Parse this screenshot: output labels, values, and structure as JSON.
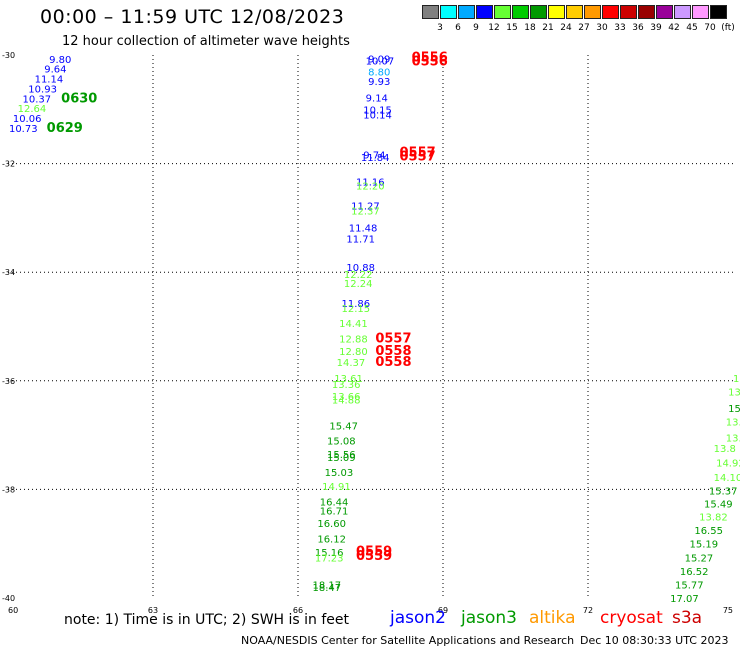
{
  "header": {
    "title": "00:00 – 11:59 UTC 12/08/2023",
    "subtitle": "12 hour collection of altimeter wave heights"
  },
  "color_scale": {
    "labels": [
      "3",
      "6",
      "9",
      "12",
      "15",
      "18",
      "21",
      "24",
      "27",
      "30",
      "33",
      "36",
      "39",
      "42",
      "45",
      "70",
      "(ft)"
    ],
    "colors": [
      "#808080",
      "#00ffff",
      "#00aaff",
      "#0000ff",
      "#66ff33",
      "#00cc00",
      "#009900",
      "#ffff00",
      "#ffcc00",
      "#ff9900",
      "#ff0000",
      "#cc0000",
      "#990000",
      "#990099",
      "#cc99ff",
      "#ff99ff",
      "#000000"
    ]
  },
  "footer": {
    "note": "note: 1) Time is in UTC; 2) SWH is in feet",
    "credit": "NOAA/NESDIS Center for Satellite Applications and Research",
    "timestamp": "Dec 10 08:30:33 UTC 2023"
  },
  "satellites": [
    {
      "name": "jason2",
      "color": "#0000ff"
    },
    {
      "name": "jason3",
      "color": "#009900"
    },
    {
      "name": "altika",
      "color": "#ff9900"
    },
    {
      "name": "cryosat",
      "color": "#ff0000"
    },
    {
      "name": "s3a",
      "color": "#cc0000"
    }
  ],
  "chart_data": {
    "type": "scatter",
    "title": "12 hour collection of altimeter wave heights",
    "xlim": [
      60,
      75
    ],
    "ylim": [
      -40,
      -30
    ],
    "x_ticks": [
      "60",
      "63",
      "66",
      "69",
      "72",
      "75"
    ],
    "y_ticks": [
      "-30",
      "-32",
      "-34",
      "-36",
      "-38",
      "-40"
    ],
    "grid": true,
    "units": "ft",
    "labels": [
      {
        "lon": 60.85,
        "lat": -30.07,
        "text": "9.80",
        "color": "#0000ff"
      },
      {
        "lon": 60.75,
        "lat": -30.25,
        "text": "9.64",
        "color": "#0000ff"
      },
      {
        "lon": 60.55,
        "lat": -30.43,
        "text": "11.14",
        "color": "#0000ff"
      },
      {
        "lon": 60.42,
        "lat": -30.62,
        "text": "10.93",
        "color": "#0000ff"
      },
      {
        "lon": 60.3,
        "lat": -30.8,
        "text": "10.37",
        "color": "#0000ff"
      },
      {
        "lon": 61.1,
        "lat": -30.8,
        "text": "0630",
        "color": "#009900"
      },
      {
        "lon": 60.2,
        "lat": -30.98,
        "text": "12.64",
        "color": "#66ff33"
      },
      {
        "lon": 60.1,
        "lat": -31.16,
        "text": "10.06",
        "color": "#0000ff"
      },
      {
        "lon": 60.02,
        "lat": -31.34,
        "text": "10.73",
        "color": "#0000ff"
      },
      {
        "lon": 60.8,
        "lat": -31.34,
        "text": "0629",
        "color": "#009900"
      },
      {
        "lon": 67.45,
        "lat": -30.06,
        "text": "9.09",
        "color": "#0000ff"
      },
      {
        "lon": 67.4,
        "lat": -30.1,
        "text": "10.07",
        "color": "#0000ff"
      },
      {
        "lon": 68.35,
        "lat": -30.05,
        "text": "0556",
        "color": "#ff0000"
      },
      {
        "lon": 68.35,
        "lat": -30.12,
        "text": "0556",
        "color": "#ff0000"
      },
      {
        "lon": 67.45,
        "lat": -30.3,
        "text": "8.80",
        "color": "#00aaff"
      },
      {
        "lon": 67.45,
        "lat": -30.48,
        "text": "9.93",
        "color": "#0000ff"
      },
      {
        "lon": 67.4,
        "lat": -30.78,
        "text": "9.14",
        "color": "#0000ff"
      },
      {
        "lon": 67.35,
        "lat": -31.0,
        "text": "10.15",
        "color": "#0000ff"
      },
      {
        "lon": 67.35,
        "lat": -31.1,
        "text": "10.14",
        "color": "#0000ff"
      },
      {
        "lon": 67.35,
        "lat": -31.83,
        "text": "9.74",
        "color": "#0000ff"
      },
      {
        "lon": 67.3,
        "lat": -31.88,
        "text": "11.84",
        "color": "#0000ff"
      },
      {
        "lon": 68.1,
        "lat": -31.8,
        "text": "0557",
        "color": "#ff0000"
      },
      {
        "lon": 68.1,
        "lat": -31.87,
        "text": "0557",
        "color": "#ff0000"
      },
      {
        "lon": 67.2,
        "lat": -32.33,
        "text": "11.16",
        "color": "#0000ff"
      },
      {
        "lon": 67.2,
        "lat": -32.4,
        "text": "12.20",
        "color": "#66ff33"
      },
      {
        "lon": 67.1,
        "lat": -32.77,
        "text": "11.27",
        "color": "#0000ff"
      },
      {
        "lon": 67.1,
        "lat": -32.86,
        "text": "12.37",
        "color": "#66ff33"
      },
      {
        "lon": 67.05,
        "lat": -33.18,
        "text": "11.48",
        "color": "#0000ff"
      },
      {
        "lon": 67.0,
        "lat": -33.38,
        "text": "11.71",
        "color": "#0000ff"
      },
      {
        "lon": 67.0,
        "lat": -33.9,
        "text": "10.88",
        "color": "#0000ff"
      },
      {
        "lon": 66.95,
        "lat": -34.03,
        "text": "12.22",
        "color": "#66ff33"
      },
      {
        "lon": 66.95,
        "lat": -34.2,
        "text": "12.24",
        "color": "#66ff33"
      },
      {
        "lon": 66.9,
        "lat": -34.57,
        "text": "11.86",
        "color": "#0000ff"
      },
      {
        "lon": 66.9,
        "lat": -34.66,
        "text": "12.15",
        "color": "#66ff33"
      },
      {
        "lon": 66.85,
        "lat": -34.94,
        "text": "14.41",
        "color": "#66ff33"
      },
      {
        "lon": 66.85,
        "lat": -35.22,
        "text": "12.88",
        "color": "#66ff33"
      },
      {
        "lon": 67.6,
        "lat": -35.22,
        "text": "0557",
        "color": "#ff0000"
      },
      {
        "lon": 66.85,
        "lat": -35.45,
        "text": "12.80",
        "color": "#66ff33"
      },
      {
        "lon": 67.6,
        "lat": -35.45,
        "text": "0558",
        "color": "#ff0000"
      },
      {
        "lon": 66.8,
        "lat": -35.65,
        "text": "14.37",
        "color": "#66ff33"
      },
      {
        "lon": 67.6,
        "lat": -35.65,
        "text": "0558",
        "color": "#ff0000"
      },
      {
        "lon": 66.75,
        "lat": -35.95,
        "text": "13.61",
        "color": "#66ff33"
      },
      {
        "lon": 66.7,
        "lat": -36.06,
        "text": "13.36",
        "color": "#66ff33"
      },
      {
        "lon": 66.7,
        "lat": -36.28,
        "text": "13.66",
        "color": "#66ff33"
      },
      {
        "lon": 66.7,
        "lat": -36.34,
        "text": "14.88",
        "color": "#66ff33"
      },
      {
        "lon": 66.65,
        "lat": -36.82,
        "text": "15.47",
        "color": "#009900"
      },
      {
        "lon": 66.6,
        "lat": -37.1,
        "text": "15.08",
        "color": "#009900"
      },
      {
        "lon": 66.6,
        "lat": -37.35,
        "text": "15.56",
        "color": "#009900"
      },
      {
        "lon": 66.6,
        "lat": -37.4,
        "text": "15.09",
        "color": "#009900"
      },
      {
        "lon": 66.55,
        "lat": -37.68,
        "text": "15.03",
        "color": "#009900"
      },
      {
        "lon": 66.5,
        "lat": -37.94,
        "text": "14.91",
        "color": "#66ff33"
      },
      {
        "lon": 66.45,
        "lat": -38.22,
        "text": "16.44",
        "color": "#009900"
      },
      {
        "lon": 66.45,
        "lat": -38.39,
        "text": "16.71",
        "color": "#009900"
      },
      {
        "lon": 66.4,
        "lat": -38.62,
        "text": "16.60",
        "color": "#009900"
      },
      {
        "lon": 66.4,
        "lat": -38.9,
        "text": "16.12",
        "color": "#009900"
      },
      {
        "lon": 66.35,
        "lat": -39.15,
        "text": "15.16",
        "color": "#009900"
      },
      {
        "lon": 66.35,
        "lat": -39.25,
        "text": "17.23",
        "color": "#66ff33"
      },
      {
        "lon": 67.2,
        "lat": -39.14,
        "text": "0559",
        "color": "#ff0000"
      },
      {
        "lon": 67.2,
        "lat": -39.23,
        "text": "0559",
        "color": "#ff0000"
      },
      {
        "lon": 66.3,
        "lat": -39.75,
        "text": "18.17",
        "color": "#009900"
      },
      {
        "lon": 66.3,
        "lat": -39.8,
        "text": "18.47",
        "color": "#009900"
      },
      {
        "lon": 75.0,
        "lat": -35.95,
        "text": "1",
        "color": "#66ff33"
      },
      {
        "lon": 74.9,
        "lat": -36.2,
        "text": "13",
        "color": "#66ff33"
      },
      {
        "lon": 74.9,
        "lat": -36.5,
        "text": "15.",
        "color": "#009900"
      },
      {
        "lon": 74.85,
        "lat": -36.75,
        "text": "13.",
        "color": "#66ff33"
      },
      {
        "lon": 74.85,
        "lat": -37.04,
        "text": "13.4",
        "color": "#66ff33"
      },
      {
        "lon": 74.6,
        "lat": -37.24,
        "text": "13.8",
        "color": "#66ff33"
      },
      {
        "lon": 74.65,
        "lat": -37.5,
        "text": "14.92",
        "color": "#66ff33"
      },
      {
        "lon": 74.6,
        "lat": -37.77,
        "text": "14.10",
        "color": "#66ff33"
      },
      {
        "lon": 74.5,
        "lat": -38.02,
        "text": "15.37",
        "color": "#009900"
      },
      {
        "lon": 74.4,
        "lat": -38.26,
        "text": "15.49",
        "color": "#009900"
      },
      {
        "lon": 74.3,
        "lat": -38.5,
        "text": "13.82",
        "color": "#66ff33"
      },
      {
        "lon": 74.2,
        "lat": -38.75,
        "text": "16.55",
        "color": "#009900"
      },
      {
        "lon": 74.1,
        "lat": -39.0,
        "text": "15.19",
        "color": "#009900"
      },
      {
        "lon": 74.0,
        "lat": -39.25,
        "text": "15.27",
        "color": "#009900"
      },
      {
        "lon": 73.9,
        "lat": -39.5,
        "text": "16.52",
        "color": "#009900"
      },
      {
        "lon": 73.8,
        "lat": -39.75,
        "text": "15.77",
        "color": "#009900"
      },
      {
        "lon": 73.7,
        "lat": -40.0,
        "text": "17.07",
        "color": "#009900"
      }
    ]
  }
}
